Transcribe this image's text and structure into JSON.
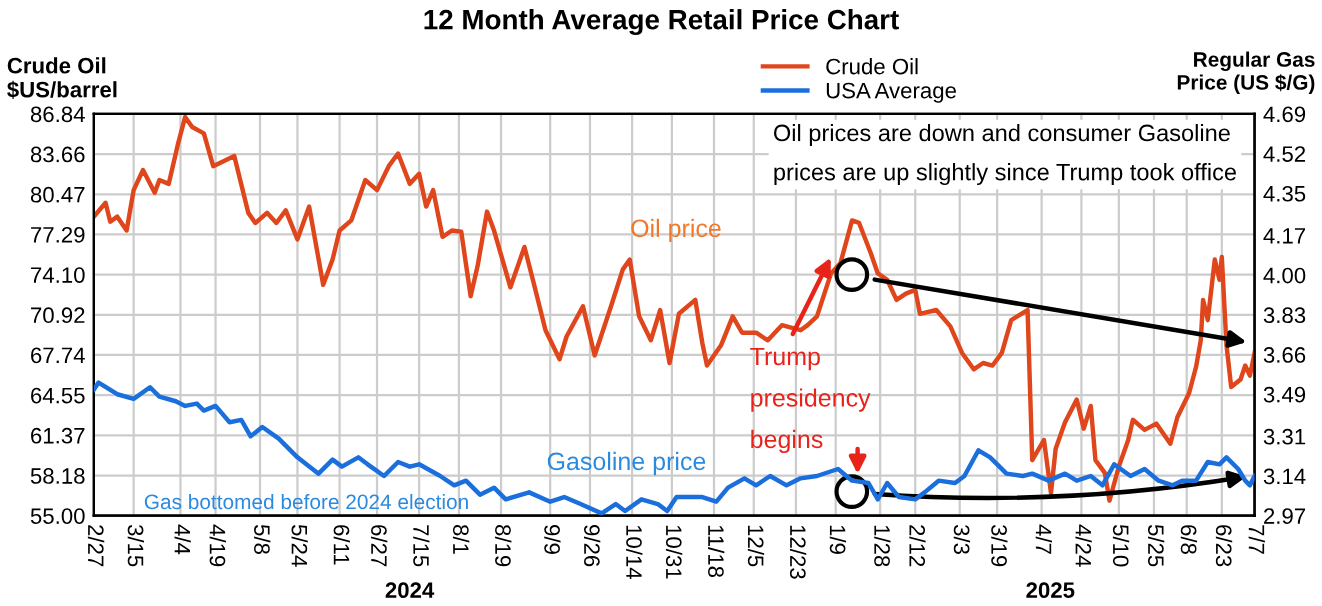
{
  "chart_data": {
    "type": "line",
    "title": "12 Month Average Retail Price Chart",
    "ylabel": "Crude Oil\n$US/barrel",
    "y2label": "Regular Gas\nPrice (US $/G)",
    "xlim": [
      "2024-02-27",
      "2025-07-07"
    ],
    "xticks": [
      {
        "value": "2024-02-27",
        "label": "2/27"
      },
      {
        "value": "2024-03-15",
        "label": "3/15"
      },
      {
        "value": "2024-04-04",
        "label": "4/4"
      },
      {
        "value": "2024-04-19",
        "label": "4/19"
      },
      {
        "value": "2024-05-08",
        "label": "5/8"
      },
      {
        "value": "2024-05-24",
        "label": "5/24"
      },
      {
        "value": "2024-06-11",
        "label": "6/11"
      },
      {
        "value": "2024-06-27",
        "label": "6/27"
      },
      {
        "value": "2024-07-15",
        "label": "7/15"
      },
      {
        "value": "2024-08-01",
        "label": "8/1"
      },
      {
        "value": "2024-08-19",
        "label": "8/19"
      },
      {
        "value": "2024-09-09",
        "label": "9/9"
      },
      {
        "value": "2024-09-26",
        "label": "9/26"
      },
      {
        "value": "2024-10-14",
        "label": "10/14"
      },
      {
        "value": "2024-10-31",
        "label": "10/31"
      },
      {
        "value": "2024-11-18",
        "label": "11/18"
      },
      {
        "value": "2024-12-05",
        "label": "12/5"
      },
      {
        "value": "2024-12-23",
        "label": "12/23"
      },
      {
        "value": "2025-01-09",
        "label": "1/9"
      },
      {
        "value": "2025-01-28",
        "label": "1/28"
      },
      {
        "value": "2025-02-12",
        "label": "2/12"
      },
      {
        "value": "2025-03-03",
        "label": "3/3"
      },
      {
        "value": "2025-03-19",
        "label": "3/19"
      },
      {
        "value": "2025-04-07",
        "label": "4/7"
      },
      {
        "value": "2025-04-24",
        "label": "4/24"
      },
      {
        "value": "2025-05-10",
        "label": "5/10"
      },
      {
        "value": "2025-05-25",
        "label": "5/25"
      },
      {
        "value": "2025-06-08",
        "label": "6/8"
      },
      {
        "value": "2025-06-23",
        "label": "6/23"
      },
      {
        "value": "2025-07-07",
        "label": "7/7"
      }
    ],
    "ylim": [
      55,
      86.84
    ],
    "yticks": [
      {
        "value": 55,
        "label": "55.00"
      },
      58.18,
      61.37,
      64.55,
      67.74,
      70.92,
      {
        "value": 74.1,
        "label": "74.10"
      },
      77.29,
      80.47,
      83.66,
      86.84
    ],
    "y2lim": [
      2.97,
      4.69
    ],
    "y2ticks": [
      2.97,
      3.14,
      3.31,
      3.49,
      3.66,
      3.83,
      {
        "value": 4,
        "label": "4.00"
      },
      4.17,
      4.35,
      4.52,
      4.69
    ],
    "grid": true,
    "legend": "top",
    "marker": "none",
    "line_style": "solid",
    "series": [
      {
        "name": "Crude Oil",
        "color": "#e0461c",
        "x": [
          "2024-02-27",
          "2024-03-03",
          "2024-03-05",
          "2024-03-08",
          "2024-03-12",
          "2024-03-15",
          "2024-03-19",
          "2024-03-24",
          "2024-03-26",
          "2024-03-30",
          "2024-04-03",
          "2024-04-06",
          "2024-04-09",
          "2024-04-14",
          "2024-04-18",
          "2024-04-27",
          "2024-05-03",
          "2024-05-06",
          "2024-05-11",
          "2024-05-15",
          "2024-05-19",
          "2024-05-24",
          "2024-05-29",
          "2024-06-04",
          "2024-06-08",
          "2024-06-11",
          "2024-06-16",
          "2024-06-22",
          "2024-06-27",
          "2024-07-02",
          "2024-07-06",
          "2024-07-11",
          "2024-07-15",
          "2024-07-18",
          "2024-07-21",
          "2024-07-25",
          "2024-07-29",
          "2024-08-02",
          "2024-08-06",
          "2024-08-09",
          "2024-08-13",
          "2024-08-16",
          "2024-08-23",
          "2024-08-29",
          "2024-09-02",
          "2024-09-07",
          "2024-09-13",
          "2024-09-16",
          "2024-09-23",
          "2024-09-28",
          "2024-10-05",
          "2024-10-10",
          "2024-10-13",
          "2024-10-17",
          "2024-10-22",
          "2024-10-26",
          "2024-10-30",
          "2024-11-03",
          "2024-11-10",
          "2024-11-13",
          "2024-11-15",
          "2024-11-21",
          "2024-11-26",
          "2024-11-30",
          "2024-12-06",
          "2024-12-11",
          "2024-12-17",
          "2024-12-25",
          "2024-12-28",
          "2025-01-01",
          "2025-01-07",
          "2025-01-11",
          "2025-01-16",
          "2025-01-19",
          "2025-01-24",
          "2025-01-27",
          "2025-01-31",
          "2025-02-04",
          "2025-02-08",
          "2025-02-12",
          "2025-02-14",
          "2025-02-21",
          "2025-02-27",
          "2025-03-04",
          "2025-03-09",
          "2025-03-13",
          "2025-03-17",
          "2025-03-21",
          "2025-03-25",
          "2025-04-01",
          "2025-04-03",
          "2025-04-08",
          "2025-04-11",
          "2025-04-13",
          "2025-04-17",
          "2025-04-22",
          "2025-04-25",
          "2025-04-28",
          "2025-04-30",
          "2025-05-04",
          "2025-05-06",
          "2025-05-10",
          "2025-05-14",
          "2025-05-16",
          "2025-05-21",
          "2025-05-26",
          "2025-06-01",
          "2025-06-04",
          "2025-06-09",
          "2025-06-12",
          "2025-06-14",
          "2025-06-15",
          "2025-06-17",
          "2025-06-20",
          "2025-06-22",
          "2025-06-23",
          "2025-06-25",
          "2025-06-27",
          "2025-07-01",
          "2025-07-03",
          "2025-07-05",
          "2025-07-07"
        ],
        "values": [
          78.7,
          79.8,
          78.3,
          78.7,
          77.6,
          80.8,
          82.4,
          80.6,
          81.6,
          81.3,
          84.5,
          86.6,
          85.8,
          85.3,
          82.7,
          83.5,
          79.0,
          78.2,
          79.0,
          78.2,
          79.2,
          76.9,
          79.5,
          73.3,
          75.3,
          77.6,
          78.4,
          81.6,
          80.8,
          82.7,
          83.7,
          81.3,
          82.1,
          79.5,
          80.8,
          77.1,
          77.6,
          77.5,
          72.4,
          74.8,
          79.1,
          77.6,
          73.1,
          76.3,
          73.4,
          69.7,
          67.4,
          69.2,
          71.6,
          67.7,
          71.6,
          74.5,
          75.3,
          70.8,
          68.9,
          71.3,
          67.1,
          71.0,
          72.1,
          68.7,
          66.9,
          68.5,
          70.8,
          69.5,
          69.5,
          68.9,
          70.1,
          69.7,
          70.1,
          70.8,
          74.2,
          75.0,
          78.4,
          78.2,
          75.8,
          74.2,
          73.7,
          72.1,
          72.6,
          72.9,
          71.0,
          71.3,
          70.0,
          67.9,
          66.6,
          67.1,
          66.9,
          67.9,
          70.5,
          71.3,
          59.4,
          61.0,
          56.8,
          60.3,
          62.4,
          64.2,
          61.9,
          63.7,
          59.4,
          58.4,
          56.2,
          58.9,
          61.0,
          62.6,
          61.8,
          62.3,
          60.7,
          62.8,
          64.7,
          66.8,
          68.9,
          72.1,
          70.5,
          75.3,
          73.7,
          75.5,
          68.5,
          65.2,
          65.8,
          66.9,
          66.1,
          67.9
        ]
      },
      {
        "name": "USA Average",
        "color": "#1b6fdc",
        "axis": "y2",
        "x": [
          "2024-02-27",
          "2024-02-29",
          "2024-03-08",
          "2024-03-15",
          "2024-03-22",
          "2024-03-26",
          "2024-04-02",
          "2024-04-06",
          "2024-04-11",
          "2024-04-14",
          "2024-04-19",
          "2024-04-25",
          "2024-04-30",
          "2024-05-04",
          "2024-05-09",
          "2024-05-16",
          "2024-05-24",
          "2024-06-02",
          "2024-06-08",
          "2024-06-12",
          "2024-06-19",
          "2024-06-23",
          "2024-06-30",
          "2024-07-06",
          "2024-07-11",
          "2024-07-15",
          "2024-07-24",
          "2024-07-30",
          "2024-08-04",
          "2024-08-10",
          "2024-08-16",
          "2024-08-21",
          "2024-08-31",
          "2024-09-09",
          "2024-09-15",
          "2024-09-22",
          "2024-10-01",
          "2024-10-07",
          "2024-10-11",
          "2024-10-18",
          "2024-10-25",
          "2024-10-29",
          "2024-11-02",
          "2024-11-13",
          "2024-11-19",
          "2024-11-24",
          "2024-12-01",
          "2024-12-06",
          "2024-12-12",
          "2024-12-19",
          "2024-12-25",
          "2025-01-01",
          "2025-01-10",
          "2025-01-16",
          "2025-01-23",
          "2025-01-27",
          "2025-01-31",
          "2025-02-05",
          "2025-02-12",
          "2025-02-16",
          "2025-02-22",
          "2025-03-01",
          "2025-03-05",
          "2025-03-11",
          "2025-03-16",
          "2025-03-23",
          "2025-03-30",
          "2025-04-03",
          "2025-04-10",
          "2025-04-17",
          "2025-04-22",
          "2025-04-28",
          "2025-05-03",
          "2025-05-08",
          "2025-05-15",
          "2025-05-21",
          "2025-05-27",
          "2025-06-02",
          "2025-06-06",
          "2025-06-12",
          "2025-06-17",
          "2025-06-22",
          "2025-06-25",
          "2025-06-30",
          "2025-07-03",
          "2025-07-05",
          "2025-07-07"
        ],
        "values": [
          3.51,
          3.54,
          3.49,
          3.47,
          3.52,
          3.48,
          3.46,
          3.44,
          3.45,
          3.42,
          3.44,
          3.37,
          3.38,
          3.31,
          3.35,
          3.3,
          3.22,
          3.15,
          3.21,
          3.18,
          3.22,
          3.19,
          3.14,
          3.2,
          3.18,
          3.19,
          3.14,
          3.1,
          3.12,
          3.06,
          3.09,
          3.04,
          3.07,
          3.03,
          3.05,
          3.02,
          2.98,
          3.02,
          2.99,
          3.04,
          3.02,
          2.99,
          3.05,
          3.05,
          3.03,
          3.09,
          3.13,
          3.1,
          3.14,
          3.1,
          3.13,
          3.14,
          3.17,
          3.12,
          3.11,
          3.04,
          3.11,
          3.05,
          3.04,
          3.07,
          3.12,
          3.11,
          3.14,
          3.25,
          3.22,
          3.15,
          3.14,
          3.15,
          3.12,
          3.15,
          3.12,
          3.14,
          3.1,
          3.19,
          3.14,
          3.17,
          3.12,
          3.1,
          3.12,
          3.12,
          3.2,
          3.19,
          3.22,
          3.17,
          3.12,
          3.1,
          3.14
        ]
      }
    ],
    "annotations": [
      "Oil prices are down and consumer Gasoline\nprices are up slightly since Trump took office",
      "Oil price",
      "Gasoline price",
      "Gas bottomed before 2024 election",
      "Trump\npresidency\nbegins",
      "2024",
      "2025"
    ]
  }
}
